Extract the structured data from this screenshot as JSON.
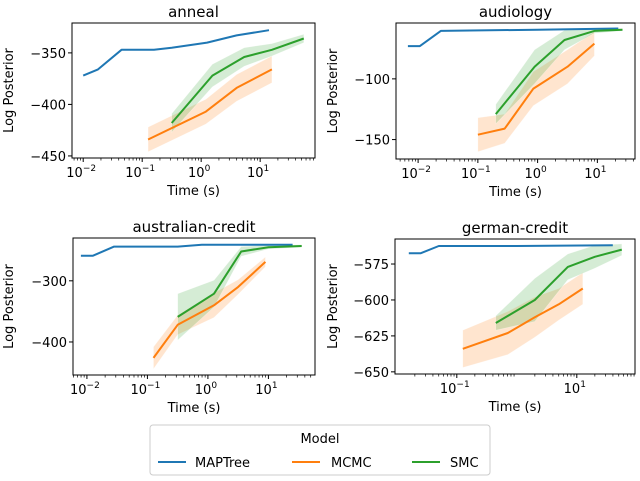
{
  "chart_data": [
    {
      "type": "line",
      "title": "anneal",
      "xlabel": "Time (s)",
      "ylabel": "Log Posterior",
      "xscale": "log",
      "xlim_log10": [
        -2.19,
        1.93
      ],
      "ylim": [
        -452,
        -321
      ],
      "yticks": [
        -350,
        -400,
        -450
      ],
      "yticklabels": [
        "−350",
        "−400",
        "−450"
      ],
      "xticks_log10": [
        -2,
        -1,
        0,
        1
      ],
      "series": [
        {
          "name": "MAPTree",
          "log10_x": [
            -2,
            -1.75,
            -1.35,
            -0.8,
            -0.5,
            0.1,
            0.6,
            1.15
          ],
          "y": [
            -372,
            -366,
            -347,
            -347,
            -345,
            -340,
            -333,
            -328
          ],
          "band": [
            0,
            0,
            0,
            0,
            0,
            0,
            0,
            0
          ]
        },
        {
          "name": "MCMC",
          "log10_x": [
            -0.9,
            0.08,
            0.6,
            1.2
          ],
          "y": [
            -434,
            -407,
            -384,
            -366
          ],
          "band": [
            12,
            12,
            13,
            13
          ]
        },
        {
          "name": "SMC",
          "log10_x": [
            -0.5,
            0.19,
            0.73,
            1.2,
            1.74
          ],
          "y": [
            -418,
            -372,
            -354,
            -347,
            -336
          ],
          "band": [
            9,
            11,
            9,
            6,
            4
          ]
        }
      ]
    },
    {
      "type": "line",
      "title": "audiology",
      "xlabel": "Time (s)",
      "ylabel": "Log Posterior",
      "xscale": "log",
      "xlim_log10": [
        -2.37,
        1.63
      ],
      "ylim": [
        -166,
        -54
      ],
      "yticks": [
        -100,
        -150
      ],
      "yticklabels": [
        "−100",
        "−150"
      ],
      "xticks_log10": [
        -2,
        -1,
        0,
        1
      ],
      "series": [
        {
          "name": "MAPTree",
          "log10_x": [
            -2.17,
            -1.97,
            -1.62,
            0,
            1.35
          ],
          "y": [
            -73,
            -73,
            -60.5,
            -59.5,
            -58.5
          ],
          "band": [
            0,
            0,
            0,
            0,
            0
          ]
        },
        {
          "name": "MCMC",
          "log10_x": [
            -1,
            -0.55,
            -0.07,
            0.5,
            0.95
          ],
          "y": [
            -146,
            -141,
            -108,
            -90,
            -71
          ],
          "band": [
            14,
            12,
            14,
            14,
            10
          ]
        },
        {
          "name": "SMC",
          "log10_x": [
            -0.7,
            -0.05,
            0.45,
            0.95,
            1.42
          ],
          "y": [
            -129,
            -90,
            -68,
            -60.5,
            -59.5
          ],
          "band": [
            8,
            14,
            8,
            2,
            1
          ]
        }
      ]
    },
    {
      "type": "line",
      "title": "australian-credit",
      "xlabel": "Time (s)",
      "ylabel": "Log Posterior",
      "xscale": "log",
      "xlim_log10": [
        -2.23,
        1.77
      ],
      "ylim": [
        -454,
        -230
      ],
      "yticks": [
        -300,
        -400
      ],
      "yticklabels": [
        "−300",
        "−400"
      ],
      "xticks_log10": [
        -2,
        -1,
        0,
        1
      ],
      "series": [
        {
          "name": "MAPTree",
          "log10_x": [
            -2.1,
            -1.9,
            -1.55,
            -0.5,
            -0.1,
            1.4
          ],
          "y": [
            -259,
            -259,
            -244,
            -244,
            -241,
            -241
          ],
          "band": [
            0,
            0,
            0,
            0,
            0,
            0
          ]
        },
        {
          "name": "MCMC",
          "log10_x": [
            -0.9,
            -0.5,
            0.1,
            0.5,
            0.95
          ],
          "y": [
            -426,
            -372,
            -340,
            -310,
            -269
          ],
          "band": [
            18,
            16,
            20,
            12,
            8
          ]
        },
        {
          "name": "SMC",
          "log10_x": [
            -0.5,
            0.1,
            0.55,
            1.0,
            1.55
          ],
          "y": [
            -359,
            -321,
            -252,
            -245,
            -243
          ],
          "band": [
            38,
            22,
            8,
            3,
            2
          ]
        }
      ]
    },
    {
      "type": "line",
      "title": "german-credit",
      "xlabel": "Time (s)",
      "ylabel": "Log Posterior",
      "xscale": "log",
      "xlim_log10": [
        -2.03,
        1.97
      ],
      "ylim": [
        -651.5,
        -557.6
      ],
      "yticks": [
        -575,
        -600,
        -625,
        -650
      ],
      "yticklabels": [
        "−575",
        "−600",
        "−625",
        "−650"
      ],
      "xticks_log10": [
        -1,
        1
      ],
      "series": [
        {
          "name": "MAPTree",
          "log10_x": [
            -1.8,
            -1.6,
            -1.3,
            0,
            1.6
          ],
          "y": [
            -567.5,
            -567.5,
            -562.5,
            -562.5,
            -562
          ],
          "band": [
            0,
            0,
            0,
            0,
            0
          ]
        },
        {
          "name": "MCMC",
          "log10_x": [
            -0.9,
            -0.15,
            0.3,
            0.7,
            1.1
          ],
          "y": [
            -634,
            -623,
            -612,
            -603,
            -592
          ],
          "band": [
            13,
            15,
            14,
            11,
            11
          ]
        },
        {
          "name": "SMC",
          "log10_x": [
            -0.35,
            0.3,
            0.85,
            1.3,
            1.75
          ],
          "y": [
            -616,
            -600,
            -577,
            -570,
            -565
          ],
          "band": [
            5,
            15,
            9,
            8,
            4
          ]
        }
      ]
    }
  ],
  "legend": {
    "title": "Model",
    "placement": "bottom-center",
    "entries": [
      {
        "label": "MAPTree",
        "color": "#1f77b4"
      },
      {
        "label": "MCMC",
        "color": "#ff7f0e"
      },
      {
        "label": "SMC",
        "color": "#2ca02c"
      }
    ]
  },
  "colors": {
    "MAPTree": "#1f77b4",
    "MCMC": "#ff7f0e",
    "SMC": "#2ca02c"
  }
}
